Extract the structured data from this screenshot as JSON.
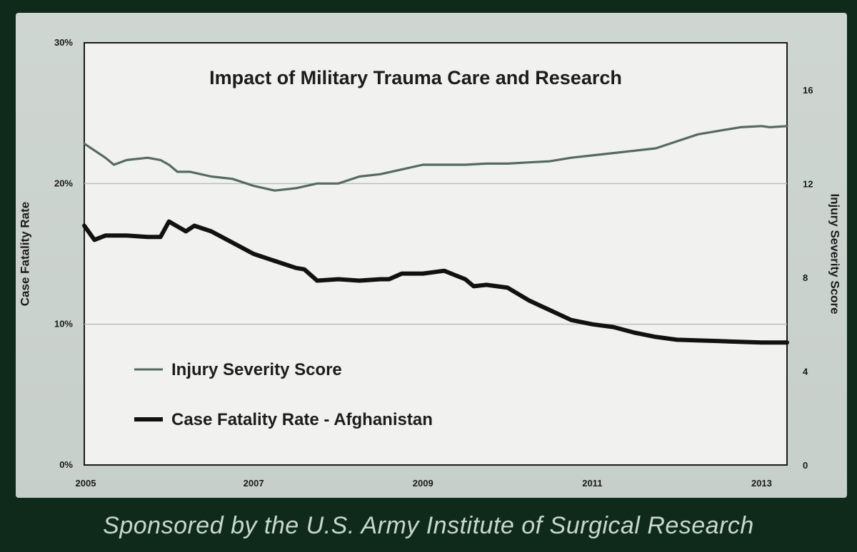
{
  "footer": "Sponsored by the U.S. Army Institute of Surgical Research",
  "chart_data": {
    "type": "line",
    "title": "Impact of Military Trauma Care and Research",
    "ylabel_left": "Case Fatality Rate",
    "ylabel_right": "Injury Severity Score",
    "xlim": [
      2005,
      2013.3
    ],
    "ylim_left": [
      0,
      30
    ],
    "ylim_right": [
      0,
      18
    ],
    "x_ticks": [
      "2005",
      "2007",
      "2009",
      "2011",
      "2013"
    ],
    "y_ticks_left": [
      "0%",
      "10%",
      "20%",
      "30%"
    ],
    "y_ticks_right": [
      "0",
      "4",
      "8",
      "12",
      "16"
    ],
    "grid": "horizontal at 10% and 20%",
    "legend_position": "bottom-left",
    "colors": {
      "iss": "#556a60",
      "cfr": "#111111",
      "plot_bg": "#f1f2f0"
    },
    "series": [
      {
        "name": "Injury Severity Score",
        "axis": "right",
        "x": [
          2005.0,
          2005.25,
          2005.35,
          2005.5,
          2005.75,
          2005.9,
          2006.0,
          2006.1,
          2006.25,
          2006.5,
          2006.75,
          2007.0,
          2007.25,
          2007.5,
          2007.75,
          2008.0,
          2008.25,
          2008.5,
          2008.75,
          2009.0,
          2009.25,
          2009.5,
          2009.75,
          2010.0,
          2010.25,
          2010.5,
          2010.75,
          2011.0,
          2011.25,
          2011.5,
          2011.75,
          2012.0,
          2012.25,
          2012.5,
          2012.75,
          2013.0,
          2013.1,
          2013.3
        ],
        "values": [
          13.7,
          13.1,
          12.8,
          13.0,
          13.1,
          13.0,
          12.8,
          12.5,
          12.5,
          12.3,
          12.2,
          11.9,
          11.7,
          11.8,
          12.0,
          12.0,
          12.3,
          12.4,
          12.6,
          12.8,
          12.8,
          12.8,
          12.85,
          12.85,
          12.9,
          12.95,
          13.1,
          13.2,
          13.3,
          13.4,
          13.5,
          13.8,
          14.1,
          14.25,
          14.4,
          14.45,
          14.4,
          14.45
        ]
      },
      {
        "name": "Case Fatality Rate - Afghanistan",
        "axis": "left",
        "x": [
          2005.0,
          2005.12,
          2005.25,
          2005.5,
          2005.75,
          2005.9,
          2006.0,
          2006.2,
          2006.3,
          2006.5,
          2006.75,
          2007.0,
          2007.25,
          2007.5,
          2007.6,
          2007.75,
          2008.0,
          2008.25,
          2008.5,
          2008.6,
          2008.75,
          2009.0,
          2009.25,
          2009.5,
          2009.6,
          2009.75,
          2010.0,
          2010.25,
          2010.5,
          2010.75,
          2011.0,
          2011.25,
          2011.5,
          2011.75,
          2012.0,
          2012.5,
          2013.0,
          2013.3
        ],
        "values": [
          17.0,
          16.0,
          16.3,
          16.3,
          16.2,
          16.2,
          17.3,
          16.6,
          17.0,
          16.6,
          15.8,
          15.0,
          14.5,
          14.0,
          13.9,
          13.1,
          13.2,
          13.1,
          13.2,
          13.2,
          13.6,
          13.6,
          13.8,
          13.2,
          12.7,
          12.8,
          12.6,
          11.7,
          11.0,
          10.3,
          10.0,
          9.8,
          9.4,
          9.1,
          8.9,
          8.8,
          8.7,
          8.7
        ]
      }
    ]
  }
}
